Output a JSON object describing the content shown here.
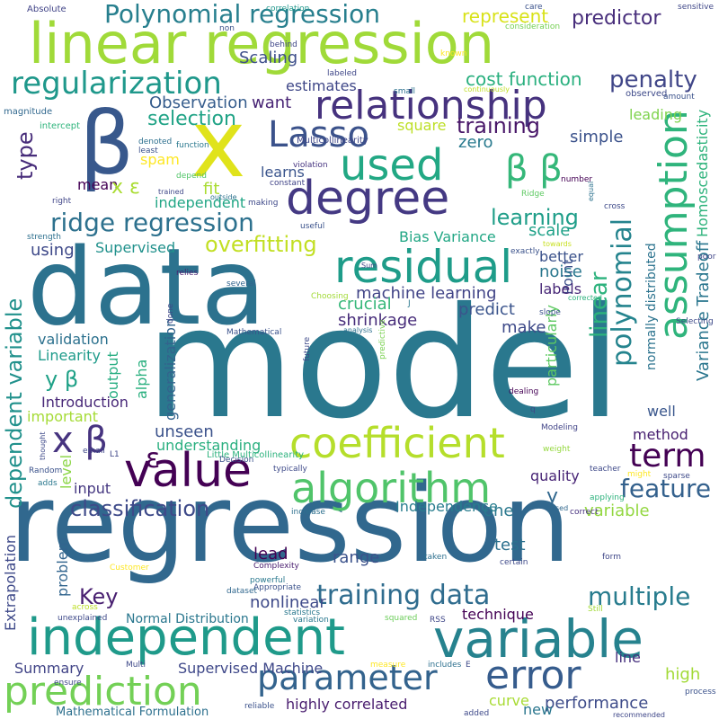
{
  "words": [
    {
      "text": "model",
      "color": "#2a788e"
    },
    {
      "text": "regression",
      "color": "#31688e"
    },
    {
      "text": "data",
      "color": "#2c728e"
    },
    {
      "text": "linear regression",
      "color": "#a0da39"
    },
    {
      "text": "independent",
      "color": "#1f9a8a"
    },
    {
      "text": "variable",
      "color": "#26828e"
    },
    {
      "text": "β",
      "color": "#38588c"
    },
    {
      "text": "x",
      "color": "#e0e31b"
    },
    {
      "text": "degree",
      "color": "#443983"
    },
    {
      "text": "used",
      "color": "#22a884"
    },
    {
      "text": "relationship",
      "color": "#46327e"
    },
    {
      "text": "value",
      "color": "#440154"
    },
    {
      "text": "residual",
      "color": "#1e9c89"
    },
    {
      "text": "assumption",
      "color": "#2fb47c"
    },
    {
      "text": "coefficient",
      "color": "#b5de2b"
    },
    {
      "text": "algorithm",
      "color": "#50c46a"
    },
    {
      "text": "parameter",
      "color": "#33638d"
    },
    {
      "text": "error",
      "color": "#365c8d"
    },
    {
      "text": "prediction",
      "color": "#73d056"
    },
    {
      "text": "regularization",
      "color": "#1f988b"
    },
    {
      "text": "Polynomial regression",
      "color": "#277f8e"
    },
    {
      "text": "Lasso",
      "color": "#3b528b"
    },
    {
      "text": "polynomial",
      "color": "#25848e"
    },
    {
      "text": "β β",
      "color": "#35b779"
    },
    {
      "text": "x β",
      "color": "#46337f"
    },
    {
      "text": "term",
      "color": "#440154"
    },
    {
      "text": "training data",
      "color": "#2f6c8e"
    },
    {
      "text": "ridge regression",
      "color": "#2d718e"
    },
    {
      "text": "dependent variable",
      "color": "#21918c"
    },
    {
      "text": "feature",
      "color": "#34618d"
    },
    {
      "text": "classification",
      "color": "#3e4a89"
    },
    {
      "text": "machine learning",
      "color": "#414487"
    },
    {
      "text": "overfitting",
      "color": "#c2df23"
    },
    {
      "text": "penalty",
      "color": "#404688"
    },
    {
      "text": "training",
      "color": "#481668"
    },
    {
      "text": "selection",
      "color": "#20a386"
    },
    {
      "text": "learning",
      "color": "#1f9e89"
    },
    {
      "text": "linear",
      "color": "#2db27d"
    },
    {
      "text": "multiple",
      "color": "#287c8e"
    },
    {
      "text": "Key",
      "color": "#481f70"
    },
    {
      "text": "cost function",
      "color": "#2ab07f"
    },
    {
      "text": "represent",
      "color": "#d8e219"
    },
    {
      "text": "predictor",
      "color": "#472d7b"
    },
    {
      "text": "Observation",
      "color": "#365d8d"
    },
    {
      "text": "estimates",
      "color": "#3f4788"
    },
    {
      "text": "want",
      "color": "#482475"
    },
    {
      "text": "Scaling",
      "color": "#3d4e8a"
    },
    {
      "text": "type",
      "color": "#472c7a"
    },
    {
      "text": "mean",
      "color": "#440154"
    },
    {
      "text": "spam",
      "color": "#fde725"
    },
    {
      "text": "fit",
      "color": "#aadc32"
    },
    {
      "text": "independent",
      "color": "#21a685"
    },
    {
      "text": "learns",
      "color": "#3a548c"
    },
    {
      "text": "zero",
      "color": "#297a8e"
    },
    {
      "text": "square",
      "color": "#bddf26"
    },
    {
      "text": "simple",
      "color": "#3b528b"
    },
    {
      "text": "leading",
      "color": "#7fd34e"
    },
    {
      "text": "Bias Variance",
      "color": "#22a785"
    },
    {
      "text": "scale",
      "color": "#1fa188"
    },
    {
      "text": "Variance Tradeoff",
      "color": "#2a768e"
    },
    {
      "text": "Homoscedasticity",
      "color": "#2eb37c"
    },
    {
      "text": "normally distributed",
      "color": "#2c738e"
    },
    {
      "text": "Point",
      "color": "#3c4f8a"
    },
    {
      "text": "noise",
      "color": "#2a778e"
    },
    {
      "text": "labels",
      "color": "#482878"
    },
    {
      "text": "better",
      "color": "#3b528b"
    },
    {
      "text": "Supervised",
      "color": "#21918c"
    },
    {
      "text": "using",
      "color": "#3e4989"
    },
    {
      "text": "crucial",
      "color": "#35b779"
    },
    {
      "text": "shrinkage",
      "color": "#472c7a"
    },
    {
      "text": "predict",
      "color": "#3a548c"
    },
    {
      "text": "particularly",
      "color": "#5ec962"
    },
    {
      "text": "make",
      "color": "#3e4a89"
    },
    {
      "text": "validation",
      "color": "#2c718e"
    },
    {
      "text": "Linearity",
      "color": "#1e9b8a"
    },
    {
      "text": "Introduction",
      "color": "#482878"
    },
    {
      "text": "y β",
      "color": "#1fa187"
    },
    {
      "text": "important",
      "color": "#a5db36"
    },
    {
      "text": "output",
      "color": "#26ad81"
    },
    {
      "text": "alpha",
      "color": "#2ab07f"
    },
    {
      "text": "generalization",
      "color": "#33638d"
    },
    {
      "text": "unseen",
      "color": "#3b528b"
    },
    {
      "text": "understanding",
      "color": "#29af7f"
    },
    {
      "text": "method",
      "color": "#482071"
    },
    {
      "text": "well",
      "color": "#39568c"
    },
    {
      "text": "quality",
      "color": "#482576"
    },
    {
      "text": "level",
      "color": "#8bd646"
    },
    {
      "text": "input",
      "color": "#453781"
    },
    {
      "text": "one",
      "color": "#2a788e"
    },
    {
      "text": "y",
      "color": "#31688e"
    },
    {
      "text": "Independence",
      "color": "#287d8e"
    },
    {
      "text": "variable",
      "color": "#93d741"
    },
    {
      "text": "range",
      "color": "#3b528b"
    },
    {
      "text": "test",
      "color": "#2c718e"
    },
    {
      "text": "lead",
      "color": "#440154"
    },
    {
      "text": "nonlinear",
      "color": "#3e4a89"
    },
    {
      "text": "problem",
      "color": "#32658e"
    },
    {
      "text": "technique",
      "color": "#440154"
    },
    {
      "text": "Extrapolation",
      "color": "#3e4989"
    },
    {
      "text": "Normal Distribution",
      "color": "#2a778e"
    },
    {
      "text": "Summary",
      "color": "#414487"
    },
    {
      "text": "Supervised Machine",
      "color": "#3f4889"
    },
    {
      "text": "highly correlated",
      "color": "#481c6e"
    },
    {
      "text": "line",
      "color": "#46307e"
    },
    {
      "text": "high",
      "color": "#a2da37"
    },
    {
      "text": "curve",
      "color": "#a8db34"
    },
    {
      "text": "performance",
      "color": "#3e4c8a"
    },
    {
      "text": "new",
      "color": "#2a768e"
    },
    {
      "text": "Mathematical Formulation",
      "color": "#2d708e"
    },
    {
      "text": "Little Multicollinearity",
      "color": "#2db27d"
    },
    {
      "text": "Multicollinearity",
      "color": "#3f4788"
    },
    {
      "text": "Absolute",
      "color": "#414487"
    },
    {
      "text": "magnitude",
      "color": "#31688e"
    },
    {
      "text": "intercept",
      "color": "#2fb47c"
    },
    {
      "text": "correlation",
      "color": "#1f978b"
    },
    {
      "text": "non",
      "color": "#3b528b"
    },
    {
      "text": "care",
      "color": "#3b528b"
    },
    {
      "text": "consideration",
      "color": "#75d054"
    },
    {
      "text": "sensitive",
      "color": "#3f4788"
    },
    {
      "text": "behind",
      "color": "#3f4788"
    },
    {
      "text": "labeled",
      "color": "#3f4788"
    },
    {
      "text": "small",
      "color": "#2c718e"
    },
    {
      "text": "continuously",
      "color": "#c0df25"
    },
    {
      "text": "known",
      "color": "#fde725"
    },
    {
      "text": "observed",
      "color": "#3e4a89"
    },
    {
      "text": "amount",
      "color": "#3b528b"
    },
    {
      "text": "denoted",
      "color": "#2d708e"
    },
    {
      "text": "least",
      "color": "#3b528b"
    },
    {
      "text": "function",
      "color": "#2a788e"
    },
    {
      "text": "violation",
      "color": "#463480"
    },
    {
      "text": "constant",
      "color": "#414487"
    },
    {
      "text": "depend",
      "color": "#52c569"
    },
    {
      "text": "trained",
      "color": "#3f4788"
    },
    {
      "text": "outside",
      "color": "#2c728e"
    },
    {
      "text": "making",
      "color": "#3e4989"
    },
    {
      "text": "useful",
      "color": "#3b528b"
    },
    {
      "text": "relies",
      "color": "#481f70"
    },
    {
      "text": "several",
      "color": "#32648e"
    },
    {
      "text": "Sum",
      "color": "#404688"
    },
    {
      "text": "Ridge",
      "color": "#5ec962"
    },
    {
      "text": "equal",
      "color": "#2c728e"
    },
    {
      "text": "cross",
      "color": "#3e4a89"
    },
    {
      "text": "number",
      "color": "#440154"
    },
    {
      "text": "towards",
      "color": "#c8e020"
    },
    {
      "text": "exactly",
      "color": "#3b528b"
    },
    {
      "text": "strength",
      "color": "#2d708e"
    },
    {
      "text": "right",
      "color": "#404688"
    },
    {
      "text": "Choosing",
      "color": "#a2da37"
    },
    {
      "text": "done",
      "color": "#3f4788"
    },
    {
      "text": "Mathematical",
      "color": "#3b528b"
    },
    {
      "text": "future",
      "color": "#3e4989"
    },
    {
      "text": "predictive",
      "color": "#7ad151"
    },
    {
      "text": "analysis",
      "color": "#2d708e"
    },
    {
      "text": "slope",
      "color": "#3b528b"
    },
    {
      "text": "corrected",
      "color": "#2db27d"
    },
    {
      "text": "dealing",
      "color": "#440154"
    },
    {
      "text": "poor",
      "color": "#404688"
    },
    {
      "text": "Selecting",
      "color": "#3e4a89"
    },
    {
      "text": "Modeling",
      "color": "#414487"
    },
    {
      "text": "thought",
      "color": "#3e4989"
    },
    {
      "text": "email",
      "color": "#3f4788"
    },
    {
      "text": "Random",
      "color": "#3b528b"
    },
    {
      "text": "Decision",
      "color": "#3b528b"
    },
    {
      "text": "typically",
      "color": "#3e4a89"
    },
    {
      "text": "weight",
      "color": "#95d840"
    },
    {
      "text": "teacher",
      "color": "#3e4989"
    },
    {
      "text": "might",
      "color": "#fde725"
    },
    {
      "text": "sparse",
      "color": "#3e4a89"
    },
    {
      "text": "applying",
      "color": "#2db27d"
    },
    {
      "text": "correct",
      "color": "#46307e"
    },
    {
      "text": "adds",
      "color": "#2a788e"
    },
    {
      "text": "increase",
      "color": "#2d708e"
    },
    {
      "text": "Customer",
      "color": "#fde725"
    },
    {
      "text": "Complexity",
      "color": "#481c6e"
    },
    {
      "text": "powerful",
      "color": "#2a788e"
    },
    {
      "text": "Appropriate",
      "color": "#3b528b"
    },
    {
      "text": "dataset",
      "color": "#31688e"
    },
    {
      "text": "taken",
      "color": "#2d708e"
    },
    {
      "text": "certain",
      "color": "#3e4989"
    },
    {
      "text": "form",
      "color": "#3f4788"
    },
    {
      "text": "statistics",
      "color": "#2a788e"
    },
    {
      "text": "across",
      "color": "#bddf26"
    },
    {
      "text": "variation",
      "color": "#2a788e"
    },
    {
      "text": "squared",
      "color": "#6ccd5a"
    },
    {
      "text": "unexplained",
      "color": "#3e4989"
    },
    {
      "text": "Still",
      "color": "#a2da37"
    },
    {
      "text": "RSS",
      "color": "#3f4788"
    },
    {
      "text": "Multi",
      "color": "#3e4989"
    },
    {
      "text": "measure",
      "color": "#fde725"
    },
    {
      "text": "includes",
      "color": "#2d708e"
    },
    {
      "text": "ensure",
      "color": "#3f4788"
    },
    {
      "text": "reliable",
      "color": "#3b528b"
    },
    {
      "text": "added",
      "color": "#3e4989"
    },
    {
      "text": "recommended",
      "color": "#3f4788"
    },
    {
      "text": "process",
      "color": "#3b528b"
    },
    {
      "text": "x ε",
      "color": "#aadc32"
    },
    {
      "text": "ε",
      "color": "#440154"
    },
    {
      "text": "L1",
      "color": "#3f4788"
    },
    {
      "text": "J",
      "color": "#2a788e"
    },
    {
      "text": "q",
      "color": "#3f4788"
    },
    {
      "text": "based",
      "color": "#31688e"
    },
    {
      "text": "E",
      "color": "#3e4989"
    }
  ]
}
